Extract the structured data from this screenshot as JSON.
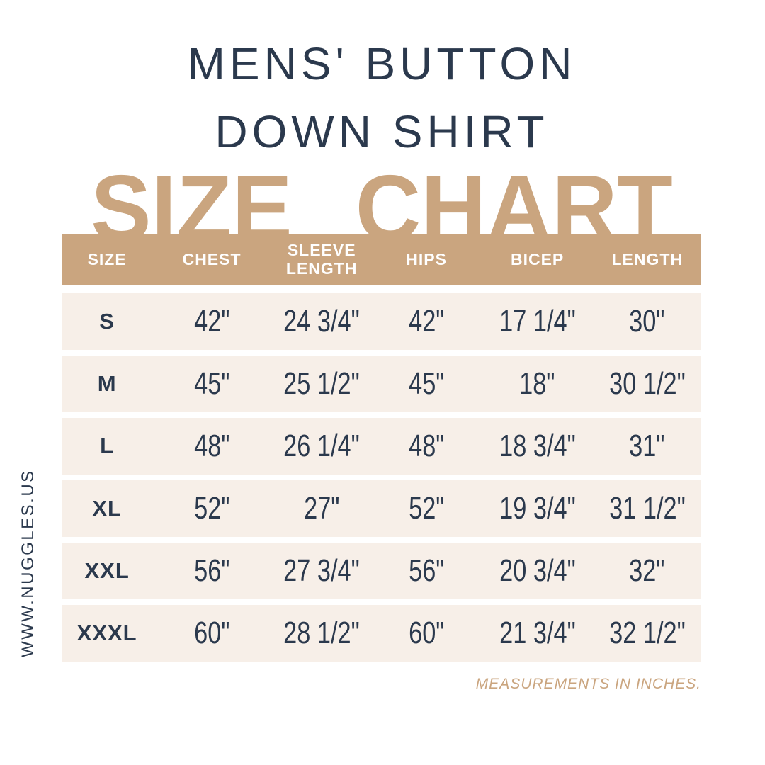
{
  "page": {
    "title_line1": "MENS' BUTTON",
    "title_line2": "DOWN SHIRT",
    "headline": "SIZE CHART",
    "website": "WWW.NUGGLES.US",
    "footnote": "MEASUREMENTS IN INCHES."
  },
  "colors": {
    "navy": "#2b394d",
    "tan": "#caa57f",
    "row_cream": "#f7efe8",
    "header_text": "#ffffff",
    "background": "#ffffff"
  },
  "chart_data": {
    "type": "table",
    "title": "MENS' BUTTON DOWN SHIRT SIZE CHART",
    "units_note": "MEASUREMENTS IN INCHES.",
    "columns": [
      "SIZE",
      "CHEST",
      "SLEEVE LENGTH",
      "HIPS",
      "BICEP",
      "LENGTH"
    ],
    "rows": [
      [
        "S",
        "42\"",
        "24 3/4\"",
        "42\"",
        "17 1/4\"",
        "30\""
      ],
      [
        "M",
        "45\"",
        "25 1/2\"",
        "45\"",
        "18\"",
        "30 1/2\""
      ],
      [
        "L",
        "48\"",
        "26 1/4\"",
        "48\"",
        "18 3/4\"",
        "31\""
      ],
      [
        "XL",
        "52\"",
        "27\"",
        "52\"",
        "19 3/4\"",
        "31 1/2\""
      ],
      [
        "XXL",
        "56\"",
        "27 3/4\"",
        "56\"",
        "20 3/4\"",
        "32\""
      ],
      [
        "XXXL",
        "60\"",
        "28 1/2\"",
        "60\"",
        "21 3/4\"",
        "32 1/2\""
      ]
    ]
  }
}
